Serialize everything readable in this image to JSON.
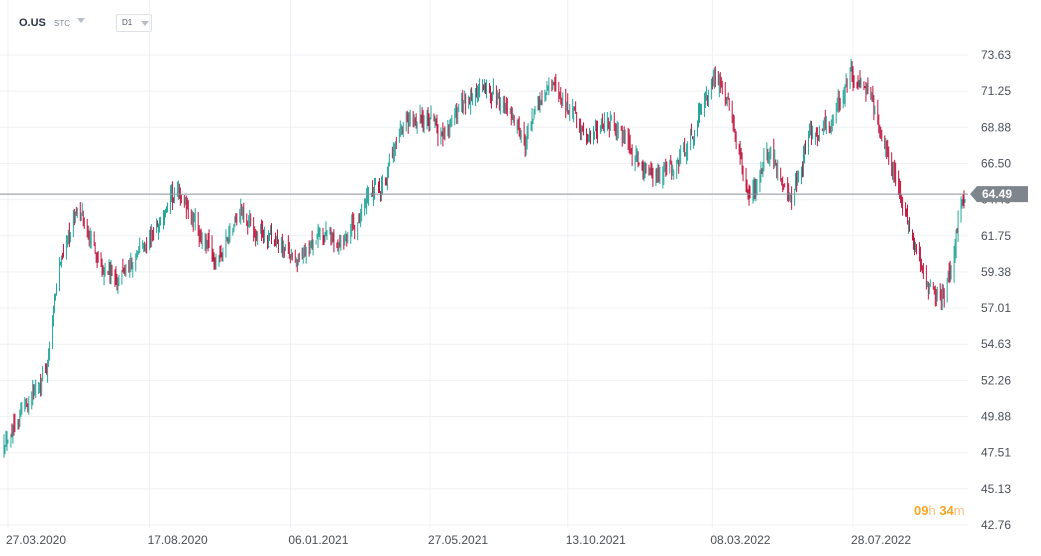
{
  "instrument": {
    "symbol": "O.US",
    "market": "STC",
    "timeframe": "D1"
  },
  "countdown": {
    "hours": "09",
    "hours_unit": "h",
    "minutes": "34",
    "minutes_unit": "m"
  },
  "colors": {
    "up": "#26a69a",
    "down": "#c0143c",
    "price_line": "#8a9097",
    "price_tag": "#7f858c",
    "grid": "#eef0f3",
    "axis_text": "#4a4f57"
  },
  "chart_data": {
    "type": "candlestick",
    "current_price": 64.49,
    "y_ticks": [
      "73.63",
      "71.25",
      "68.88",
      "66.50",
      "64.49",
      "61.75",
      "59.38",
      "57.01",
      "54.63",
      "52.26",
      "49.88",
      "47.51",
      "45.13",
      "42.76"
    ],
    "ylim": [
      42.76,
      73.63
    ],
    "x_ticks": [
      "27.03.2020",
      "17.08.2020",
      "06.01.2021",
      "27.05.2021",
      "13.10.2021",
      "08.03.2022",
      "28.07.2022"
    ],
    "xlim": [
      "2020-03-23",
      "2022-11-18"
    ],
    "close_path": [
      [
        "2020-03-23",
        48.5
      ],
      [
        "2020-04-15",
        51.0
      ],
      [
        "2020-05-05",
        53.0
      ],
      [
        "2020-05-20",
        60.5
      ],
      [
        "2020-06-05",
        63.5
      ],
      [
        "2020-06-25",
        60.5
      ],
      [
        "2020-07-15",
        58.8
      ],
      [
        "2020-08-05",
        60.5
      ],
      [
        "2020-08-25",
        62.5
      ],
      [
        "2020-09-15",
        64.5
      ],
      [
        "2020-10-05",
        62.0
      ],
      [
        "2020-10-25",
        59.8
      ],
      [
        "2020-11-15",
        63.5
      ],
      [
        "2020-12-05",
        62.0
      ],
      [
        "2020-12-25",
        61.0
      ],
      [
        "2021-01-15",
        60.2
      ],
      [
        "2021-02-05",
        61.5
      ],
      [
        "2021-02-25",
        61.5
      ],
      [
        "2021-03-20",
        63.0
      ],
      [
        "2021-04-10",
        65.5
      ],
      [
        "2021-04-30",
        68.5
      ],
      [
        "2021-05-20",
        69.5
      ],
      [
        "2021-06-10",
        68.5
      ],
      [
        "2021-06-30",
        70.5
      ],
      [
        "2021-07-20",
        71.5
      ],
      [
        "2021-08-10",
        70.5
      ],
      [
        "2021-08-30",
        67.8
      ],
      [
        "2021-09-25",
        71.8
      ],
      [
        "2021-10-15",
        70.0
      ],
      [
        "2021-11-05",
        68.0
      ],
      [
        "2021-11-25",
        69.5
      ],
      [
        "2021-12-15",
        67.0
      ],
      [
        "2022-01-10",
        65.5
      ],
      [
        "2022-02-01",
        66.5
      ],
      [
        "2022-02-20",
        69.0
      ],
      [
        "2022-03-10",
        72.5
      ],
      [
        "2022-03-30",
        69.0
      ],
      [
        "2022-04-15",
        64.0
      ],
      [
        "2022-05-05",
        67.5
      ],
      [
        "2022-05-25",
        64.0
      ],
      [
        "2022-06-15",
        68.5
      ],
      [
        "2022-07-05",
        68.8
      ],
      [
        "2022-07-25",
        72.5
      ],
      [
        "2022-08-10",
        71.5
      ],
      [
        "2022-09-01",
        67.5
      ],
      [
        "2022-09-20",
        63.0
      ],
      [
        "2022-10-10",
        58.5
      ],
      [
        "2022-10-25",
        57.5
      ],
      [
        "2022-11-05",
        60.5
      ],
      [
        "2022-11-15",
        64.0
      ],
      [
        "2022-11-18",
        64.49
      ]
    ]
  }
}
